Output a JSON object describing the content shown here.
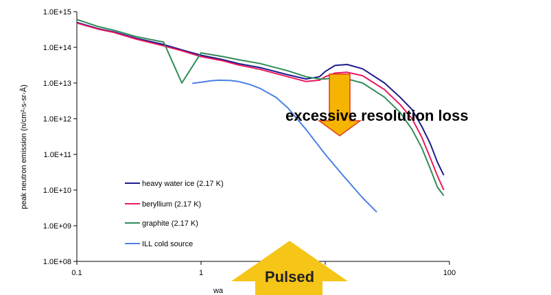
{
  "chart_data": {
    "type": "line",
    "x_scale": "log",
    "y_scale": "log",
    "xlim": [
      0.1,
      100
    ],
    "ylim": [
      100000000.0,
      1000000000000000.0
    ],
    "x_ticks": [
      {
        "value": 0.1,
        "label": "0.1"
      },
      {
        "value": 1,
        "label": "1"
      },
      {
        "value": 100,
        "label": "100"
      }
    ],
    "y_ticks": [
      {
        "value": 100000000.0,
        "label": "1.0E+08"
      },
      {
        "value": 1000000000.0,
        "label": "1.0E+09"
      },
      {
        "value": 10000000000.0,
        "label": "1.0E+10"
      },
      {
        "value": 100000000000.0,
        "label": "1.0E+11"
      },
      {
        "value": 1000000000000.0,
        "label": "1.0E+12"
      },
      {
        "value": 10000000000000.0,
        "label": "1.0E+13"
      },
      {
        "value": 100000000000000.0,
        "label": "1.0E+14"
      },
      {
        "value": 1000000000000000.0,
        "label": "1.0E+15"
      }
    ],
    "xlabel": "wa",
    "ylabel": "peak neutron emission (n/cm²-s-sr-Å)",
    "grid": false,
    "legend_position": "bottom-left",
    "series": [
      {
        "name": "heavy water ice (2.17 K)",
        "color": "#1a1a8c",
        "x": [
          0.1,
          0.15,
          0.2,
          0.3,
          0.5,
          0.7,
          1,
          1.5,
          2,
          3,
          5,
          7,
          9,
          10,
          12,
          15,
          20,
          30,
          40,
          50,
          60,
          70,
          80,
          90
        ],
        "y": [
          500000000000000.0,
          330000000000000.0,
          270000000000000.0,
          180000000000000.0,
          120000000000000.0,
          85000000000000.0,
          60000000000000.0,
          45000000000000.0,
          35000000000000.0,
          27000000000000.0,
          17000000000000.0,
          13000000000000.0,
          15000000000000.0,
          21000000000000.0,
          31000000000000.0,
          33000000000000.0,
          25000000000000.0,
          10000000000000.0,
          4000000000000.0,
          1800000000000.0,
          600000000000.0,
          200000000000.0,
          60000000000.0,
          26000000000.0
        ]
      },
      {
        "name": "beryllium (2.17 K)",
        "color": "#e8175d",
        "x": [
          0.1,
          0.15,
          0.2,
          0.3,
          0.5,
          0.7,
          1,
          1.5,
          2,
          3,
          5,
          7,
          9,
          10,
          12,
          15,
          20,
          30,
          40,
          50,
          60,
          70,
          80,
          90
        ],
        "y": [
          480000000000000.0,
          320000000000000.0,
          260000000000000.0,
          170000000000000.0,
          110000000000000.0,
          80000000000000.0,
          55000000000000.0,
          42000000000000.0,
          32000000000000.0,
          24000000000000.0,
          15000000000000.0,
          11000000000000.0,
          12000000000000.0,
          15000000000000.0,
          19000000000000.0,
          20000000000000.0,
          16000000000000.0,
          6500000000000.0,
          2500000000000.0,
          1000000000000.0,
          300000000000.0,
          80000000000.0,
          25000000000.0,
          10000000000.0
        ]
      },
      {
        "name": "graphite (2.17 K)",
        "color": "#2e8b57",
        "x": [
          0.1,
          0.15,
          0.2,
          0.3,
          0.5,
          0.7,
          1,
          1.5,
          2,
          3,
          5,
          7,
          9,
          10,
          12,
          15,
          20,
          30,
          40,
          50,
          60,
          70,
          80,
          90
        ],
        "y": [
          600000000000000.0,
          380000000000000.0,
          300000000000000.0,
          200000000000000.0,
          140000000000000.0,
          10000000000000.0,
          70000000000000.0,
          55000000000000.0,
          45000000000000.0,
          35000000000000.0,
          22000000000000.0,
          15000000000000.0,
          13000000000000.0,
          13000000000000.0,
          14000000000000.0,
          13000000000000.0,
          10000000000000.0,
          4000000000000.0,
          1500000000000.0,
          500000000000.0,
          150000000000.0,
          40000000000.0,
          12000000000.0,
          7000000000.0
        ]
      },
      {
        "name": "ILL cold source",
        "color": "#4a7fe6",
        "x": [
          0.85,
          1,
          1.2,
          1.4,
          1.7,
          2,
          2.5,
          3,
          4,
          5,
          7,
          10,
          14,
          20,
          26
        ],
        "y": [
          9800000000000.0,
          10500000000000.0,
          11500000000000.0,
          12000000000000.0,
          11800000000000.0,
          11000000000000.0,
          9000000000000.0,
          7000000000000.0,
          4000000000000.0,
          2000000000000.0,
          500000000000.0,
          100000000000.0,
          25000000000.0,
          6000000000.0,
          2400000000.0
        ]
      }
    ]
  },
  "annotations": {
    "resolution_loss": "excessive resolution loss",
    "pulsed": "Pulsed",
    "arrow_fill": "#f5b400",
    "arrow_stroke": "#e03a1e",
    "pulsed_fill": "#f5c518"
  }
}
